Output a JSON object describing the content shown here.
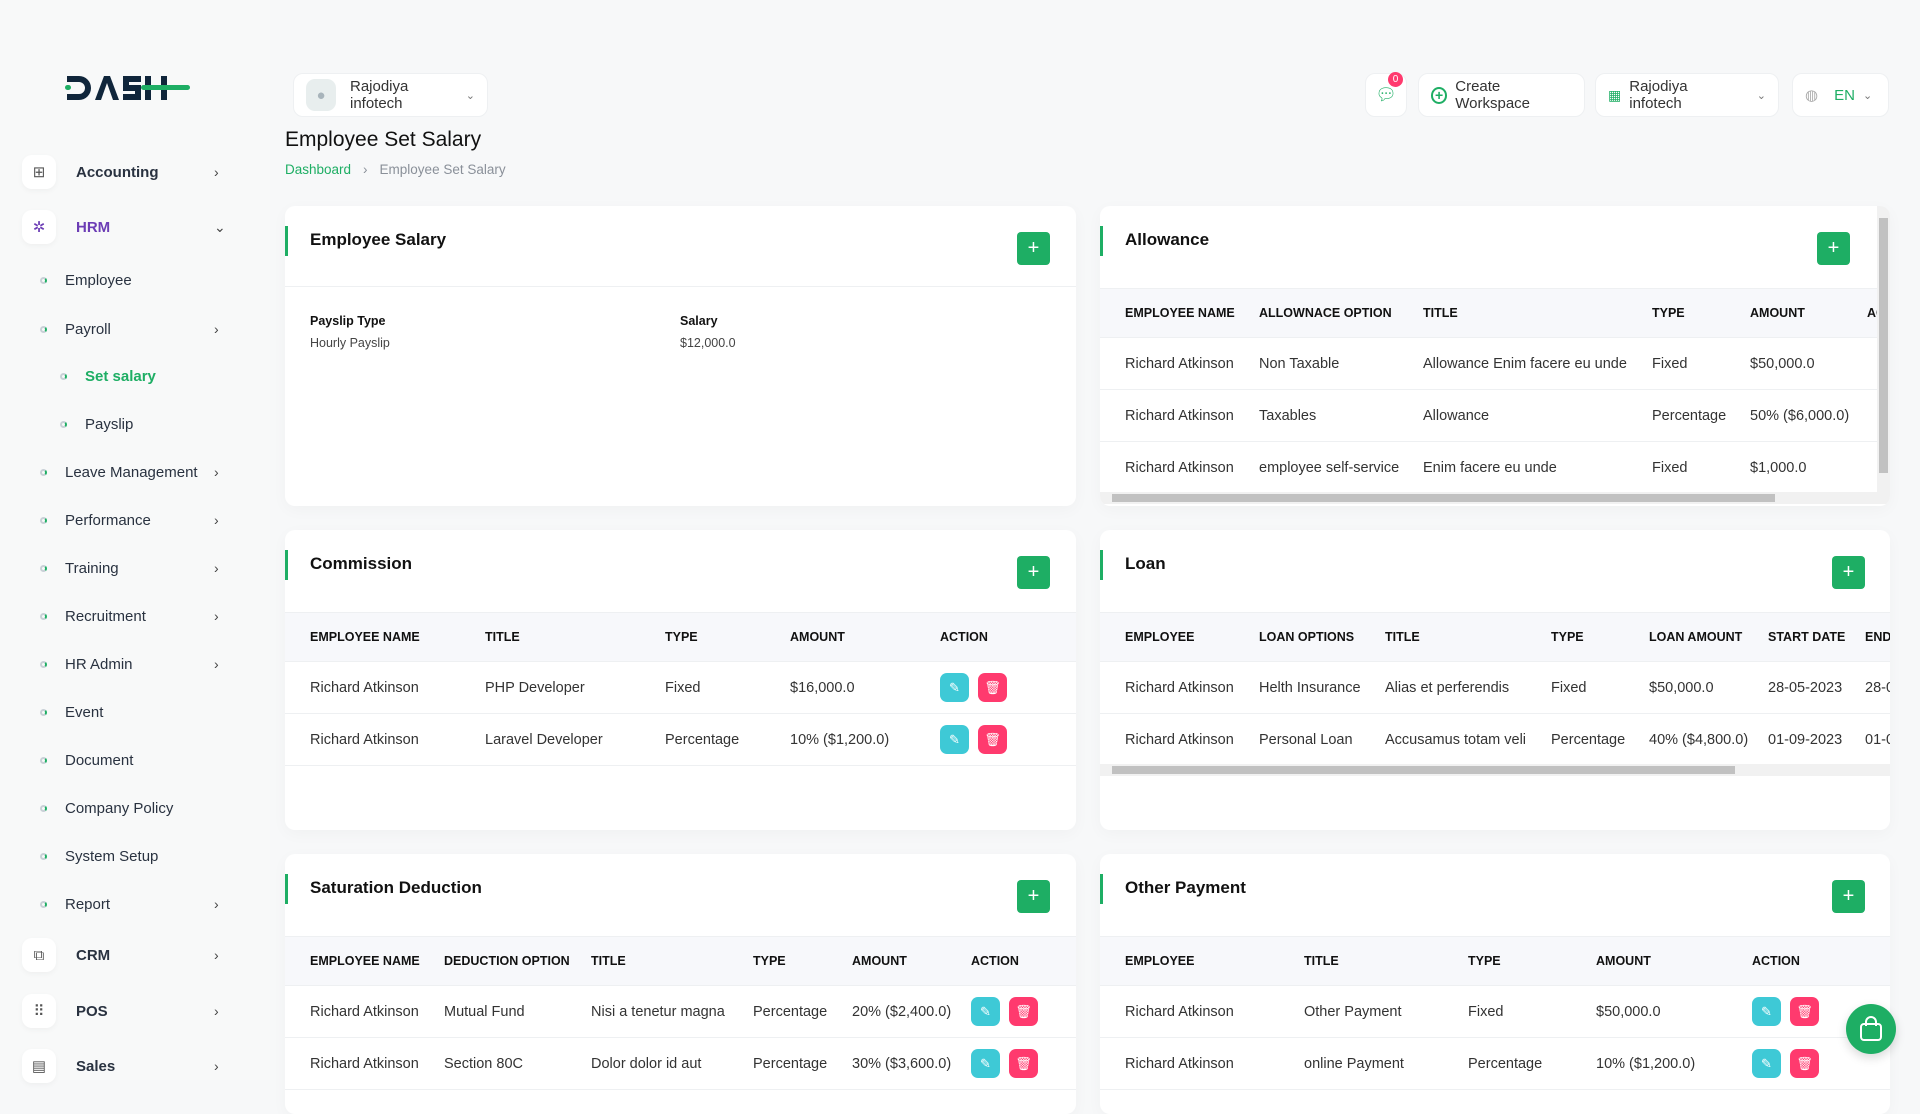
{
  "brand": {
    "logo_text": "DASH",
    "accent": "#1eae64"
  },
  "header": {
    "company": "Rajodiya infotech",
    "notif_count": "0",
    "create_workspace": "Create Workspace",
    "workspace": "Rajodiya infotech",
    "lang": "EN"
  },
  "page": {
    "title": "Employee Set Salary",
    "breadcrumb": [
      "Dashboard",
      "Employee Set Salary"
    ]
  },
  "sidebar": {
    "items": [
      {
        "label": "Accounting",
        "type": "top",
        "icon": "grid-plus-icon",
        "chev": "›"
      },
      {
        "label": "HRM",
        "type": "top",
        "icon": "hrm-icon",
        "chev": "⌄"
      },
      {
        "label": "Employee",
        "type": "sub"
      },
      {
        "label": "Payroll",
        "type": "sub",
        "chev": "›"
      },
      {
        "label": "Set salary",
        "type": "sub2",
        "active": true
      },
      {
        "label": "Payslip",
        "type": "sub2"
      },
      {
        "label": "Leave Management",
        "type": "sub",
        "chev": "›"
      },
      {
        "label": "Performance",
        "type": "sub",
        "chev": "›"
      },
      {
        "label": "Training",
        "type": "sub",
        "chev": "›"
      },
      {
        "label": "Recruitment",
        "type": "sub",
        "chev": "›"
      },
      {
        "label": "HR Admin",
        "type": "sub",
        "chev": "›"
      },
      {
        "label": "Event",
        "type": "sub"
      },
      {
        "label": "Document",
        "type": "sub"
      },
      {
        "label": "Company Policy",
        "type": "sub"
      },
      {
        "label": "System Setup",
        "type": "sub"
      },
      {
        "label": "Report",
        "type": "sub",
        "chev": "›"
      },
      {
        "label": "CRM",
        "type": "top",
        "icon": "crm-icon",
        "chev": "›"
      },
      {
        "label": "POS",
        "type": "top",
        "icon": "pos-grid-icon",
        "chev": "›"
      },
      {
        "label": "Sales",
        "type": "top",
        "icon": "document-icon",
        "chev": "›"
      }
    ]
  },
  "employee_salary": {
    "title": "Employee Salary",
    "payslip_type_label": "Payslip Type",
    "payslip_type": "Hourly Payslip",
    "salary_label": "Salary",
    "salary": "$12,000.0"
  },
  "allowance": {
    "title": "Allowance",
    "columns": [
      "EMPLOYEE NAME",
      "ALLOWNACE OPTION",
      "TITLE",
      "TYPE",
      "AMOUNT",
      "ACTION"
    ],
    "rows": [
      [
        "Richard Atkinson",
        "Non Taxable",
        "Allowance Enim facere eu unde",
        "Fixed",
        "$50,000.0"
      ],
      [
        "Richard Atkinson",
        "Taxables",
        "Allowance",
        "Percentage",
        "50% ($6,000.0)"
      ],
      [
        "Richard Atkinson",
        "employee self-service",
        "Enim facere eu unde",
        "Fixed",
        "$1,000.0"
      ]
    ]
  },
  "commission": {
    "title": "Commission",
    "columns": [
      "EMPLOYEE NAME",
      "TITLE",
      "TYPE",
      "AMOUNT",
      "ACTION"
    ],
    "rows": [
      [
        "Richard Atkinson",
        "PHP Developer",
        "Fixed",
        "$16,000.0"
      ],
      [
        "Richard Atkinson",
        "Laravel Developer",
        "Percentage",
        "10% ($1,200.0)"
      ]
    ]
  },
  "loan": {
    "title": "Loan",
    "columns": [
      "EMPLOYEE",
      "LOAN OPTIONS",
      "TITLE",
      "TYPE",
      "LOAN AMOUNT",
      "START DATE",
      "END DATE"
    ],
    "rows": [
      [
        "Richard Atkinson",
        "Helth Insurance",
        "Alias et perferendis",
        "Fixed",
        "$50,000.0",
        "28-05-2023",
        "28-0"
      ],
      [
        "Richard Atkinson",
        "Personal Loan",
        "Accusamus totam veli",
        "Percentage",
        "40% ($4,800.0)",
        "01-09-2023",
        "01-0"
      ]
    ]
  },
  "deduction": {
    "title": "Saturation Deduction",
    "columns": [
      "EMPLOYEE NAME",
      "DEDUCTION OPTION",
      "TITLE",
      "TYPE",
      "AMOUNT",
      "ACTION"
    ],
    "rows": [
      [
        "Richard Atkinson",
        "Mutual Fund",
        "Nisi a tenetur magna",
        "Percentage",
        "20% ($2,400.0)"
      ],
      [
        "Richard Atkinson",
        "Section 80C",
        "Dolor dolor id aut",
        "Percentage",
        "30% ($3,600.0)"
      ]
    ]
  },
  "other_payment": {
    "title": "Other Payment",
    "columns": [
      "EMPLOYEE",
      "TITLE",
      "TYPE",
      "AMOUNT",
      "ACTION"
    ],
    "rows": [
      [
        "Richard Atkinson",
        "Other Payment",
        "Fixed",
        "$50,000.0"
      ],
      [
        "Richard Atkinson",
        "online Payment",
        "Percentage",
        "10% ($1,200.0)"
      ]
    ]
  },
  "icons": {
    "edit": "pencil-icon",
    "delete": "trash-icon",
    "add": "plus-icon",
    "cart": "shopping-bag-icon"
  }
}
